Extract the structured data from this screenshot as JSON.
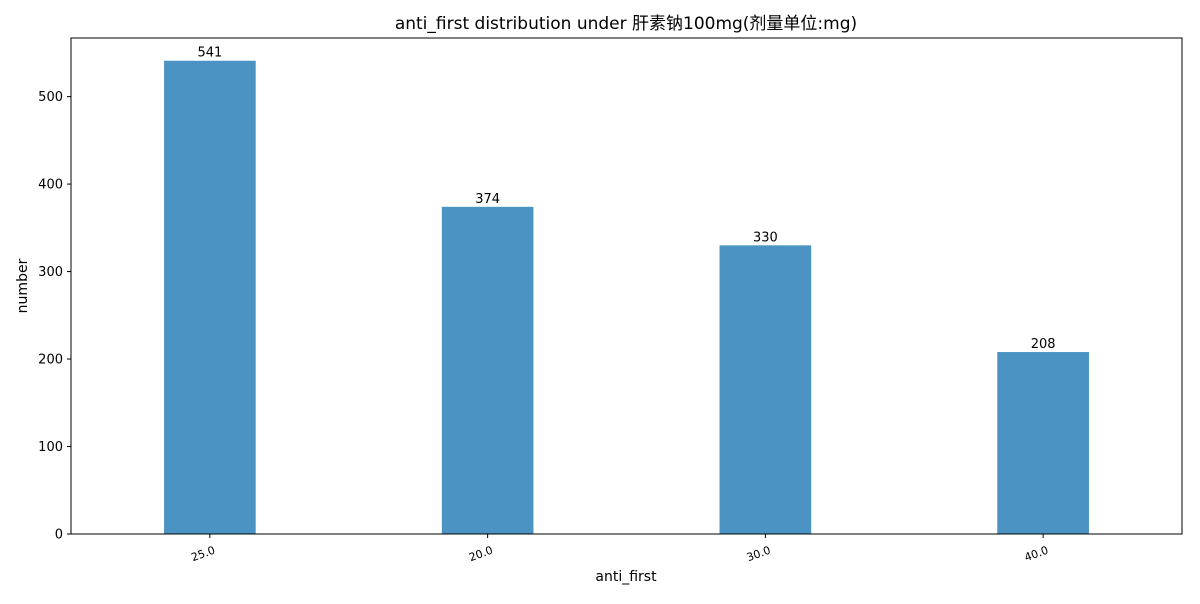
{
  "chart_data": {
    "type": "bar",
    "title": "anti_first distribution under 肝素钠100mg(剂量单位:mg)",
    "xlabel": "anti_first",
    "ylabel": "number",
    "categories": [
      "25.0",
      "20.0",
      "30.0",
      "40.0"
    ],
    "values": [
      541,
      374,
      330,
      208
    ],
    "data_labels": [
      "541",
      "374",
      "330",
      "208"
    ],
    "ylim": [
      0,
      567
    ],
    "yticks": [
      0,
      100,
      200,
      300,
      400,
      500
    ],
    "grid": false,
    "legend": "none",
    "bar_color": "#4b93c3"
  }
}
